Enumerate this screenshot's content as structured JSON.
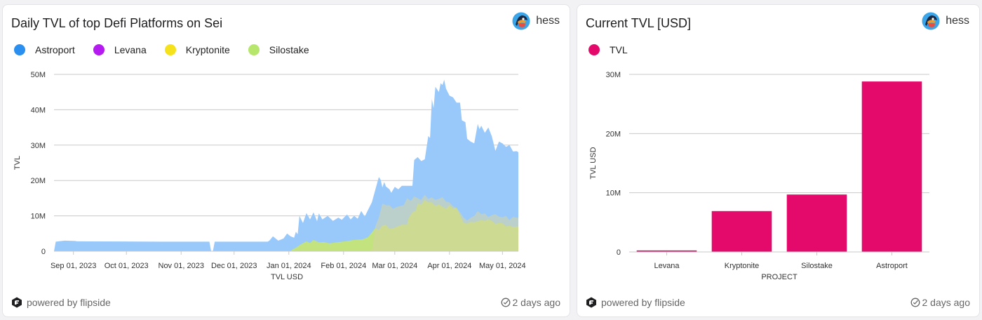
{
  "cards": [
    {
      "title": "Daily TVL of top Defi Platforms on Sei",
      "author": "hess",
      "footer_text": "powered by flipside",
      "updated": "2 days ago",
      "legend": [
        {
          "label": "Astroport",
          "color": "#2b8ff0"
        },
        {
          "label": "Levana",
          "color": "#b51af0"
        },
        {
          "label": "Kryptonite",
          "color": "#f6e21c"
        },
        {
          "label": "Silostake",
          "color": "#b7e66c"
        }
      ]
    },
    {
      "title": "Current TVL [USD]",
      "author": "hess",
      "footer_text": "powered by flipside",
      "updated": "2 days ago",
      "legend": [
        {
          "label": "TVL",
          "color": "#e30a6c"
        }
      ]
    }
  ],
  "colors": {
    "astroport_fill": "#99c9fb",
    "silostake_fill": "#c2e37e",
    "kryptonite_fill": "#d7d6a2",
    "bar": "#e30a6c",
    "grid": "#c9c9c9",
    "tick": "#333333"
  },
  "chart_data": [
    {
      "type": "area",
      "title": "Daily TVL of top Defi Platforms on Sei",
      "xlabel": "TVL USD",
      "ylabel": "TVL",
      "ylim": [
        0,
        50000000
      ],
      "yticks": [
        0,
        10000000,
        20000000,
        30000000,
        40000000,
        50000000
      ],
      "ytick_labels": [
        "0",
        "10M",
        "20M",
        "30M",
        "40M",
        "50M"
      ],
      "xlim_days": [
        0,
        263
      ],
      "x_start_date": "2023-08-21",
      "xticks_days": [
        11,
        41,
        72,
        102,
        133,
        164,
        193,
        224,
        254
      ],
      "xtick_labels": [
        "Sep 01, 2023",
        "Oct 01, 2023",
        "Nov 01, 2023",
        "Dec 01, 2023",
        "Jan 01, 2024",
        "Feb 01, 2024",
        "Mar 01, 2024",
        "Apr 01, 2024",
        "May 01, 2024"
      ],
      "series": [
        {
          "name": "Astroport",
          "points": [
            [
              0,
              0
            ],
            [
              1,
              2700000
            ],
            [
              6,
              3000000
            ],
            [
              12,
              2900000
            ],
            [
              13,
              2800000
            ],
            [
              40,
              2750000
            ],
            [
              60,
              2700000
            ],
            [
              88,
              2700000
            ],
            [
              89,
              0
            ],
            [
              90,
              0
            ],
            [
              91,
              2700000
            ],
            [
              100,
              2700000
            ],
            [
              121,
              2700000
            ],
            [
              122,
              3000000
            ],
            [
              124,
              4200000
            ],
            [
              127,
              3000000
            ],
            [
              130,
              3600000
            ],
            [
              132,
              5000000
            ],
            [
              134,
              4200000
            ],
            [
              136,
              3800000
            ],
            [
              137,
              5500000
            ],
            [
              138,
              4800000
            ],
            [
              139,
              10000000
            ],
            [
              141,
              8000000
            ],
            [
              143,
              10800000
            ],
            [
              145,
              9000000
            ],
            [
              147,
              11000000
            ],
            [
              149,
              8500000
            ],
            [
              150,
              10700000
            ],
            [
              152,
              9000000
            ],
            [
              155,
              10000000
            ],
            [
              158,
              8600000
            ],
            [
              161,
              9500000
            ],
            [
              163,
              8900000
            ],
            [
              166,
              10400000
            ],
            [
              168,
              9000000
            ],
            [
              170,
              10000000
            ],
            [
              172,
              9200000
            ],
            [
              174,
              11400000
            ],
            [
              176,
              9800000
            ],
            [
              178,
              11800000
            ],
            [
              180,
              13800000
            ],
            [
              182,
              17400000
            ],
            [
              184,
              21000000
            ],
            [
              185,
              20200000
            ],
            [
              186,
              18000000
            ],
            [
              187,
              19600000
            ],
            [
              188,
              18300000
            ],
            [
              190,
              17500000
            ],
            [
              191,
              16500000
            ],
            [
              193,
              18200000
            ],
            [
              195,
              17500000
            ],
            [
              197,
              18500000
            ],
            [
              203,
              18500000
            ],
            [
              204,
              25800000
            ],
            [
              206,
              26600000
            ],
            [
              208,
              25500000
            ],
            [
              210,
              26000000
            ],
            [
              212,
              32600000
            ],
            [
              213,
              32000000
            ],
            [
              214,
              43000000
            ],
            [
              215,
              40500000
            ],
            [
              216,
              46500000
            ],
            [
              218,
              45000000
            ],
            [
              219,
              47500000
            ],
            [
              220,
              47000000
            ],
            [
              221,
              48500000
            ],
            [
              222,
              46000000
            ],
            [
              224,
              44000000
            ],
            [
              226,
              43500000
            ],
            [
              228,
              42000000
            ],
            [
              230,
              42000000
            ],
            [
              231,
              37000000
            ],
            [
              233,
              36500000
            ],
            [
              234,
              31800000
            ],
            [
              236,
              31000000
            ],
            [
              238,
              30500000
            ],
            [
              240,
              36000000
            ],
            [
              241,
              34500000
            ],
            [
              242,
              35500000
            ],
            [
              244,
              33500000
            ],
            [
              246,
              35000000
            ],
            [
              248,
              32500000
            ],
            [
              250,
              28400000
            ],
            [
              252,
              31000000
            ],
            [
              254,
              30500000
            ],
            [
              256,
              29500000
            ],
            [
              258,
              30000000
            ],
            [
              260,
              28200000
            ],
            [
              262,
              28300000
            ],
            [
              263,
              28000000
            ],
            [
              263,
              0
            ]
          ]
        },
        {
          "name": "Silostake",
          "points": [
            [
              134,
              0
            ],
            [
              135,
              500000
            ],
            [
              137,
              1000000
            ],
            [
              140,
              2000000
            ],
            [
              143,
              2800000
            ],
            [
              145,
              2300000
            ],
            [
              147,
              3200000
            ],
            [
              150,
              2500000
            ],
            [
              153,
              2600000
            ],
            [
              156,
              2200000
            ],
            [
              160,
              2500000
            ],
            [
              165,
              2800000
            ],
            [
              170,
              3200000
            ],
            [
              175,
              3400000
            ],
            [
              178,
              4000000
            ],
            [
              180,
              5300000
            ],
            [
              182,
              6500000
            ],
            [
              184,
              6000000
            ],
            [
              186,
              7300000
            ],
            [
              188,
              7500000
            ],
            [
              190,
              6300000
            ],
            [
              192,
              6500000
            ],
            [
              197,
              7500000
            ],
            [
              200,
              7500000
            ],
            [
              201,
              9500000
            ],
            [
              203,
              11000000
            ],
            [
              205,
              11500000
            ],
            [
              206,
              13500000
            ],
            [
              208,
              13200000
            ],
            [
              210,
              14500000
            ],
            [
              212,
              13800000
            ],
            [
              214,
              13800000
            ],
            [
              216,
              12800000
            ],
            [
              218,
              13200000
            ],
            [
              220,
              12600000
            ],
            [
              222,
              12000000
            ],
            [
              224,
              13000000
            ],
            [
              226,
              12000000
            ],
            [
              228,
              12300000
            ],
            [
              230,
              10200000
            ],
            [
              232,
              8000000
            ],
            [
              234,
              7800000
            ],
            [
              236,
              8300000
            ],
            [
              238,
              8200000
            ],
            [
              240,
              8500000
            ],
            [
              242,
              8800000
            ],
            [
              244,
              8600000
            ],
            [
              246,
              9000000
            ],
            [
              248,
              8600000
            ],
            [
              250,
              7700000
            ],
            [
              252,
              8000000
            ],
            [
              254,
              7900000
            ],
            [
              256,
              7000000
            ],
            [
              258,
              7200000
            ],
            [
              260,
              6900000
            ],
            [
              262,
              7000000
            ],
            [
              263,
              7000000
            ],
            [
              263,
              0
            ]
          ]
        },
        {
          "name": "Kryptonite",
          "points": [
            [
              180,
              0
            ],
            [
              182,
              7000000
            ],
            [
              184,
              9500000
            ],
            [
              186,
              13500000
            ],
            [
              188,
              13000000
            ],
            [
              190,
              13000000
            ],
            [
              192,
              12000000
            ],
            [
              194,
              12500000
            ],
            [
              196,
              12800000
            ],
            [
              198,
              13000000
            ],
            [
              200,
              15000000
            ],
            [
              202,
              14200000
            ],
            [
              204,
              15500000
            ],
            [
              206,
              15000000
            ],
            [
              208,
              14500000
            ],
            [
              210,
              16000000
            ],
            [
              212,
              14800000
            ],
            [
              214,
              15200000
            ],
            [
              216,
              14500000
            ],
            [
              218,
              14800000
            ],
            [
              220,
              15300000
            ],
            [
              222,
              14000000
            ],
            [
              224,
              13800000
            ],
            [
              226,
              12700000
            ],
            [
              228,
              12200000
            ],
            [
              230,
              11000000
            ],
            [
              232,
              9500000
            ],
            [
              234,
              8700000
            ],
            [
              236,
              9500000
            ],
            [
              238,
              10000000
            ],
            [
              240,
              11300000
            ],
            [
              242,
              10500000
            ],
            [
              244,
              10700000
            ],
            [
              246,
              9700000
            ],
            [
              248,
              10200000
            ],
            [
              250,
              10500000
            ],
            [
              252,
              9800000
            ],
            [
              254,
              9600000
            ],
            [
              256,
              10000000
            ],
            [
              258,
              8800000
            ],
            [
              260,
              9700000
            ],
            [
              262,
              9500000
            ],
            [
              263,
              9500000
            ],
            [
              263,
              0
            ]
          ]
        }
      ]
    },
    {
      "type": "bar",
      "title": "Current TVL [USD]",
      "xlabel": "PROJECT",
      "ylabel": "TVL USD",
      "ylim": [
        0,
        30000000
      ],
      "yticks": [
        0,
        10000000,
        20000000,
        30000000
      ],
      "ytick_labels": [
        "0",
        "10M",
        "20M",
        "30M"
      ],
      "categories": [
        "Levana",
        "Kryptonite",
        "Silostake",
        "Astroport"
      ],
      "values": [
        250000,
        6900000,
        9700000,
        28800000
      ]
    }
  ]
}
